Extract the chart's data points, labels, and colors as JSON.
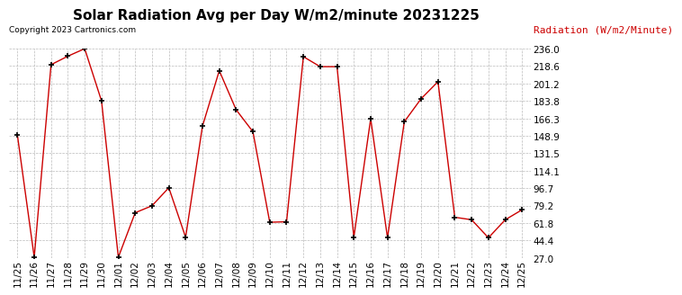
{
  "title": "Solar Radiation Avg per Day W/m2/minute 20231225",
  "copyright": "Copyright 2023 Cartronics.com",
  "ylabel": "Radiation (W/m2/Minute)",
  "labels": [
    "11/25",
    "11/26",
    "11/27",
    "11/28",
    "11/29",
    "11/30",
    "12/01",
    "12/02",
    "12/03",
    "12/04",
    "12/05",
    "12/06",
    "12/07",
    "12/08",
    "12/09",
    "12/10",
    "12/11",
    "12/12",
    "12/13",
    "12/14",
    "12/15",
    "12/16",
    "12/17",
    "12/18",
    "12/19",
    "12/20",
    "12/21",
    "12/22",
    "12/23",
    "12/24",
    "12/25"
  ],
  "values": [
    149.5,
    27.5,
    220.0,
    228.5,
    236.0,
    183.8,
    27.5,
    72.0,
    79.0,
    97.0,
    47.5,
    158.5,
    214.0,
    175.0,
    153.0,
    62.5,
    63.0,
    228.0,
    218.0,
    218.0,
    47.5,
    166.0,
    47.0,
    163.0,
    186.0,
    203.0,
    67.5,
    65.0,
    47.0,
    65.0,
    75.0
  ],
  "ylim": [
    27.0,
    236.0
  ],
  "yticks": [
    27.0,
    44.4,
    61.8,
    79.2,
    96.7,
    114.1,
    131.5,
    148.9,
    166.3,
    183.8,
    201.2,
    218.6,
    236.0
  ],
  "line_color": "#cc0000",
  "marker_color": "#000000",
  "background_color": "#ffffff",
  "grid_color": "#bbbbbb",
  "title_fontsize": 11,
  "tick_fontsize": 7.5,
  "copyright_color": "#000000",
  "ylabel_color": "#cc0000"
}
